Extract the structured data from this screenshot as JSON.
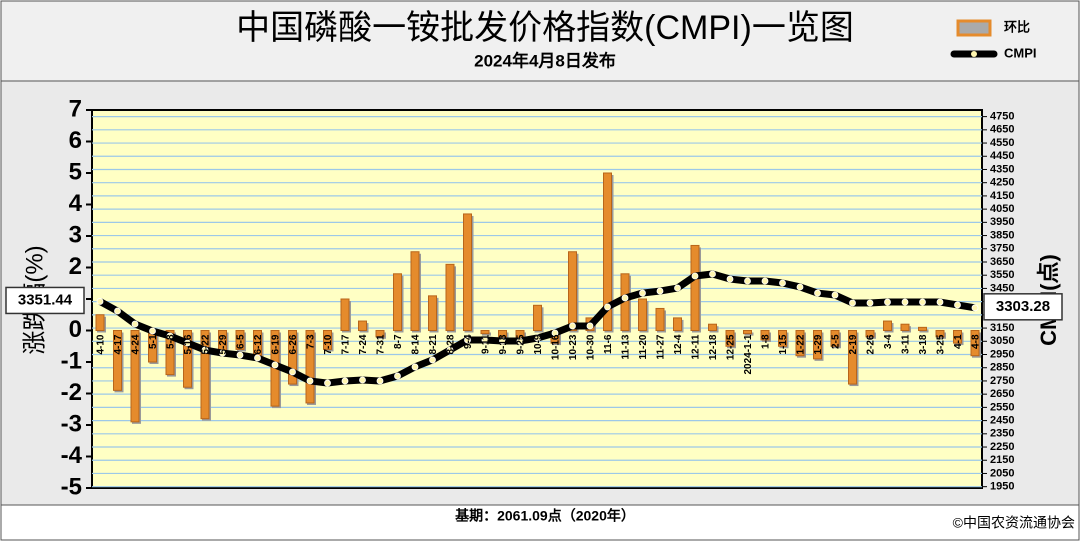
{
  "chart_data": {
    "type": "combo",
    "title": "中国磷酸一铵批发价格指数(CMPI)一览图",
    "subtitle": "2024年4月8日发布",
    "ylabel": "涨跌幅(%)",
    "y2label": "CMPI(点)",
    "footnote": "基期：2061.09点（2020年）",
    "source": "©中国农资流通协会",
    "categories": [
      "4-10",
      "4-17",
      "4-24",
      "5-1",
      "5-8",
      "5-16",
      "5-22",
      "5-29",
      "6-5",
      "6-12",
      "6-19",
      "6-26",
      "7-3",
      "7-10",
      "7-17",
      "7-24",
      "7-31",
      "8-7",
      "8-14",
      "8-21",
      "8-28",
      "9-4",
      "9-11",
      "9-18",
      "9-25",
      "10-9",
      "10-16",
      "10-23",
      "10-30",
      "11-6",
      "11-13",
      "11-20",
      "11-27",
      "12-4",
      "12-11",
      "12-18",
      "12-25",
      "2024-1-1",
      "1-8",
      "1-15",
      "1-22",
      "1-29",
      "2-5",
      "2-19",
      "2-26",
      "3-4",
      "3-11",
      "3-18",
      "3-25",
      "4-1",
      "4-8"
    ],
    "series": [
      {
        "name": "环比",
        "type": "bar",
        "color": "#e58b2c",
        "values": [
          0.5,
          -1.9,
          -2.9,
          -1.0,
          -1.4,
          -1.8,
          -2.8,
          -0.7,
          -0.6,
          -0.9,
          -2.4,
          -1.7,
          -2.3,
          -0.6,
          1.0,
          0.3,
          -0.2,
          1.8,
          2.5,
          1.1,
          2.1,
          3.7,
          -0.1,
          -0.2,
          -0.3,
          0.8,
          -0.4,
          2.5,
          0.4,
          5.0,
          1.8,
          1.0,
          0.7,
          0.4,
          2.7,
          0.2,
          -0.5,
          -0.1,
          -0.3,
          -0.5,
          -0.8,
          -0.9,
          -0.5,
          -1.7,
          -0.2,
          0.3,
          0.2,
          0.1,
          -0.2,
          -0.4,
          -0.8
        ]
      },
      {
        "name": "CMPI",
        "type": "line",
        "axis": "y2",
        "color": "#000000",
        "values": [
          3351.44,
          3279,
          3181,
          3128,
          3090,
          3037,
          2984,
          2961,
          2946,
          2924,
          2871,
          2818,
          2750,
          2734,
          2750,
          2757,
          2750,
          2787,
          2856,
          2909,
          2984,
          3060,
          3060,
          3052,
          3052,
          3075,
          3113,
          3166,
          3166,
          3310,
          3378,
          3415,
          3430,
          3453,
          3544,
          3559,
          3521,
          3506,
          3506,
          3491,
          3461,
          3415,
          3400,
          3340,
          3340,
          3347,
          3347,
          3347,
          3347,
          3325,
          3303.28
        ]
      }
    ],
    "ylim": [
      -5,
      7
    ],
    "yticks": [
      -5,
      -4,
      -3,
      -2,
      -1,
      0,
      1,
      2,
      3,
      4,
      5,
      6,
      7
    ],
    "y2lim": [
      1940,
      4800
    ],
    "y2ticks": [
      1950,
      2050,
      2150,
      2250,
      2350,
      2450,
      2550,
      2650,
      2750,
      2850,
      2950,
      3050,
      3150,
      3250,
      3350,
      3450,
      3550,
      3650,
      3750,
      3850,
      3950,
      4050,
      4150,
      4250,
      4350,
      4450,
      4550,
      4650,
      4750
    ],
    "grid": true
  }
}
